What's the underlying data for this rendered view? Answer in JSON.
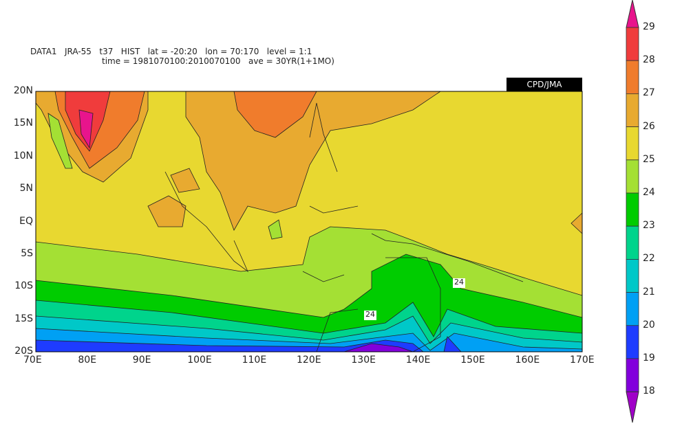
{
  "title": {
    "line1": "DATA1   JRA-55   t37   HIST   lat = -20:20   lon = 70:170   level = 1:1",
    "line2": "time = 1981070100:2010070100   ave = 30YR(1+1MO)"
  },
  "badge": "CPD/JMA",
  "map": {
    "lon_range": [
      70,
      170
    ],
    "lat_range": [
      -20,
      20
    ],
    "lon_ticks": [
      "70E",
      "80E",
      "90E",
      "100E",
      "110E",
      "120E",
      "130E",
      "140E",
      "150E",
      "160E",
      "170E"
    ],
    "lat_ticks": [
      "20N",
      "15N",
      "10N",
      "5N",
      "EQ",
      "5S",
      "10S",
      "15S",
      "20S"
    ],
    "contour_labels": [
      "24",
      "24"
    ],
    "field": "filled contours with coastlines"
  },
  "colorbar": {
    "levels": [
      "29",
      "28",
      "27",
      "26",
      "25",
      "24",
      "23",
      "22",
      "21",
      "20",
      "19",
      "18"
    ],
    "colors": [
      "#e8148c",
      "#f03c3c",
      "#f07c2c",
      "#e8aa30",
      "#e8d830",
      "#a4e034",
      "#00cc00",
      "#00d48c",
      "#00c8c8",
      "#00a0f4",
      "#1e3cff",
      "#8200dc",
      "#a000c8"
    ]
  }
}
